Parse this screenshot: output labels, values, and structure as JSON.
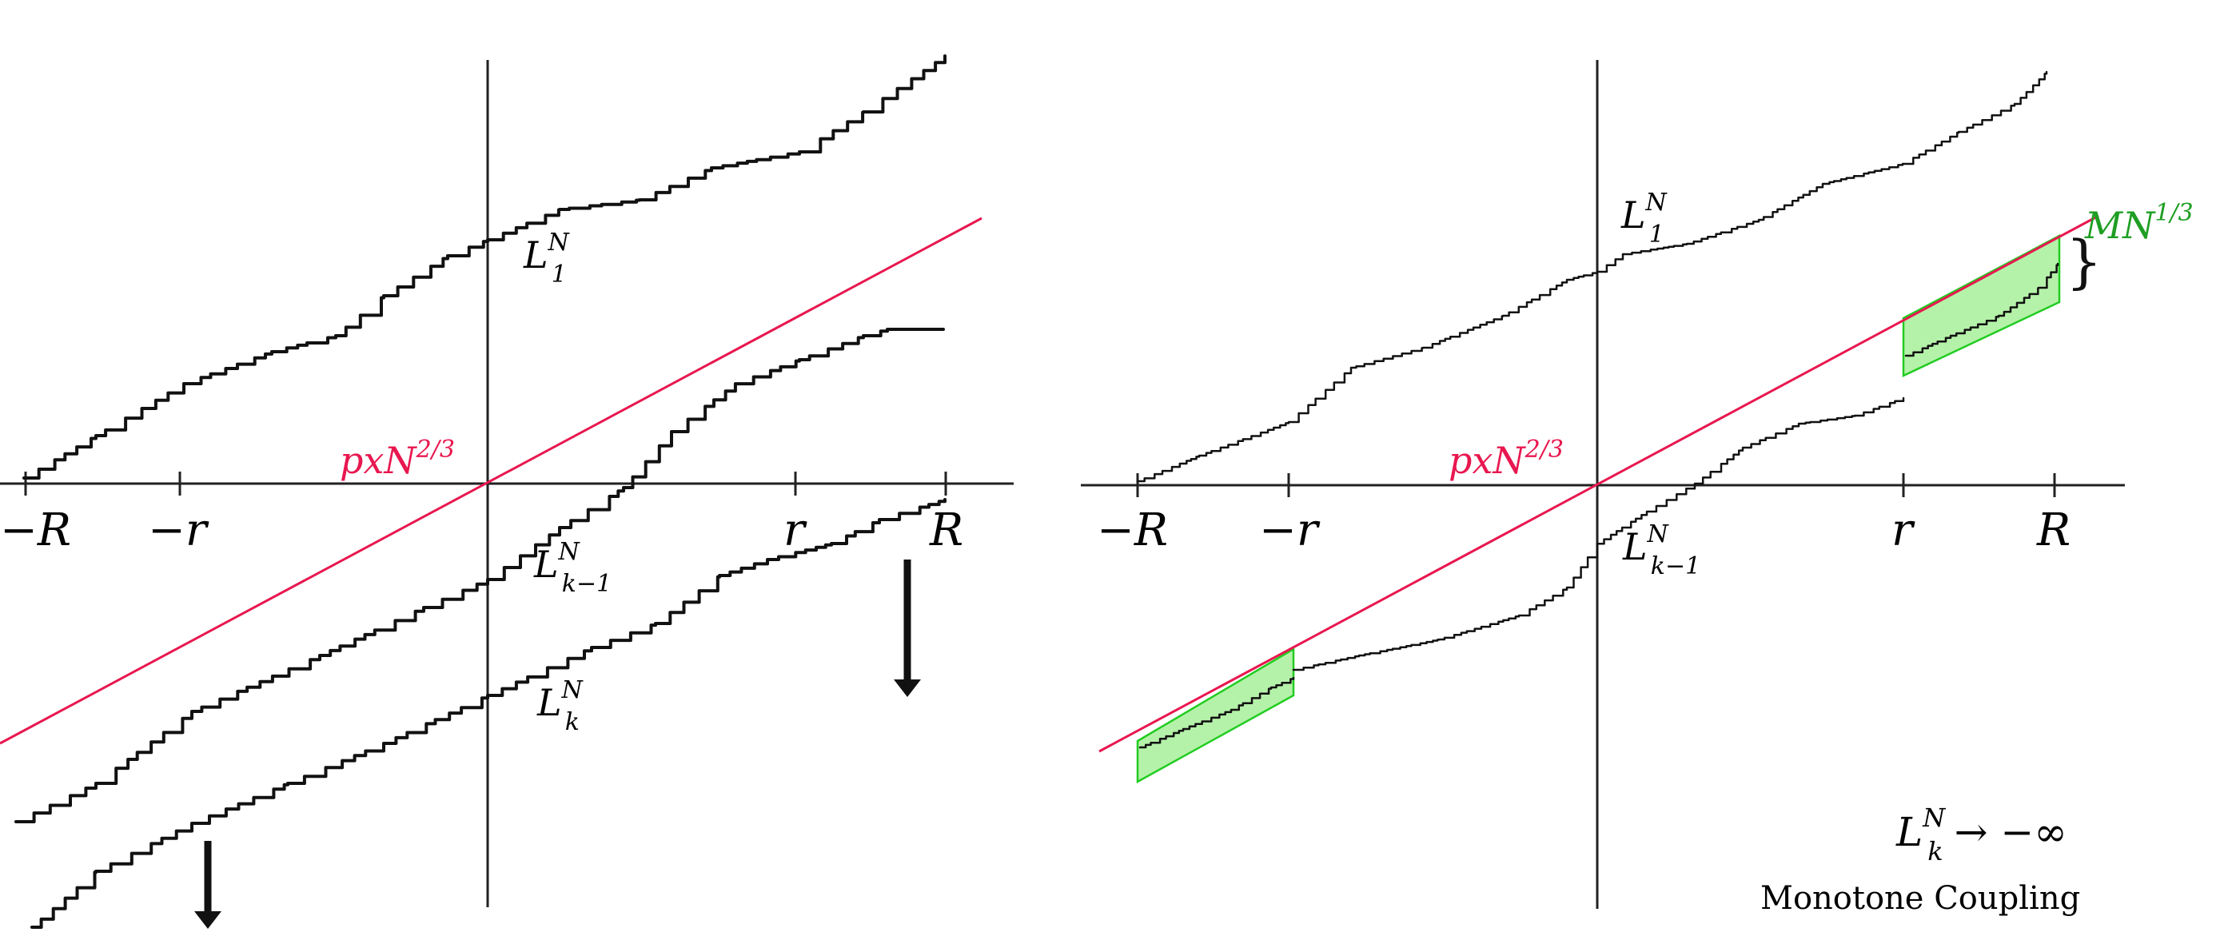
{
  "colors": {
    "ink": "#111111",
    "red": "#e8174f",
    "green": "#1e9e22",
    "green_fill": "#a8f09a",
    "green_stroke": "#22cc22"
  },
  "left_panel": {
    "tick_neg_R": "−R",
    "tick_neg_r": "−r",
    "tick_r": "r",
    "tick_R": "R",
    "line_label": {
      "base": "pxN",
      "sup": "2/3"
    },
    "curve_1": {
      "base": "L",
      "sup": "N",
      "sub": "1"
    },
    "curve_k_minus_1": {
      "base": "L",
      "sup": "N",
      "sub": "k−1"
    },
    "curve_k": {
      "base": "L",
      "sup": "N",
      "sub": "k"
    }
  },
  "right_panel": {
    "tick_neg_R": "−R",
    "tick_neg_r": "−r",
    "tick_r": "r",
    "tick_R": "R",
    "line_label": {
      "base": "pxN",
      "sup": "2/3"
    },
    "curve_1": {
      "base": "L",
      "sup": "N",
      "sub": "1"
    },
    "curve_k_minus_1": {
      "base": "L",
      "sup": "N",
      "sub": "k−1"
    },
    "box_label": {
      "base": "MN",
      "sup": "1/3"
    },
    "brace": "}",
    "limit": {
      "base": "L",
      "sup": "N",
      "sub": "k",
      "rest": "→ −∞"
    },
    "caption": "Monotone Coupling"
  }
}
